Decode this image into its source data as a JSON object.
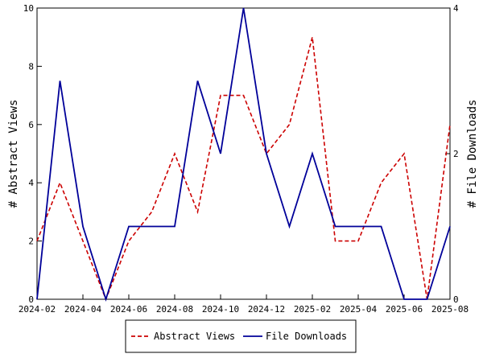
{
  "chart_data": {
    "type": "line",
    "ylabel": "# Abstract Views",
    "y2label": "# File Downloads",
    "ylim": [
      0,
      10
    ],
    "y2lim": [
      0,
      4
    ],
    "yticks": [
      "0",
      "2",
      "4",
      "6",
      "8",
      "10"
    ],
    "y2ticks": [
      "0",
      "2",
      "4"
    ],
    "xticks": [
      "2024-02",
      "2024-04",
      "2024-06",
      "2024-08",
      "2024-10",
      "2024-12",
      "2025-02",
      "2025-04",
      "2025-06",
      "2025-08"
    ],
    "x": [
      "2024-02",
      "2024-03",
      "2024-04",
      "2024-05",
      "2024-06",
      "2024-07",
      "2024-08",
      "2024-09",
      "2024-10",
      "2024-11",
      "2024-12",
      "2025-01",
      "2025-02",
      "2025-03",
      "2025-04",
      "2025-05",
      "2025-06",
      "2025-07",
      "2025-08"
    ],
    "series": [
      {
        "name": "Abstract Views",
        "axis": "left",
        "color": "#cc0000",
        "style": "dashed",
        "values": [
          2,
          4,
          2,
          0,
          2,
          3,
          5,
          3,
          7,
          7,
          5,
          6,
          9,
          2,
          2,
          4,
          5,
          0,
          6
        ]
      },
      {
        "name": "File Downloads",
        "axis": "right",
        "color": "#000099",
        "style": "solid",
        "values": [
          0,
          3,
          1,
          0,
          1,
          1,
          1,
          3,
          2,
          4,
          2,
          1,
          2,
          1,
          1,
          1,
          0,
          0,
          1
        ]
      }
    ],
    "legend": "bottom",
    "grid": false
  }
}
